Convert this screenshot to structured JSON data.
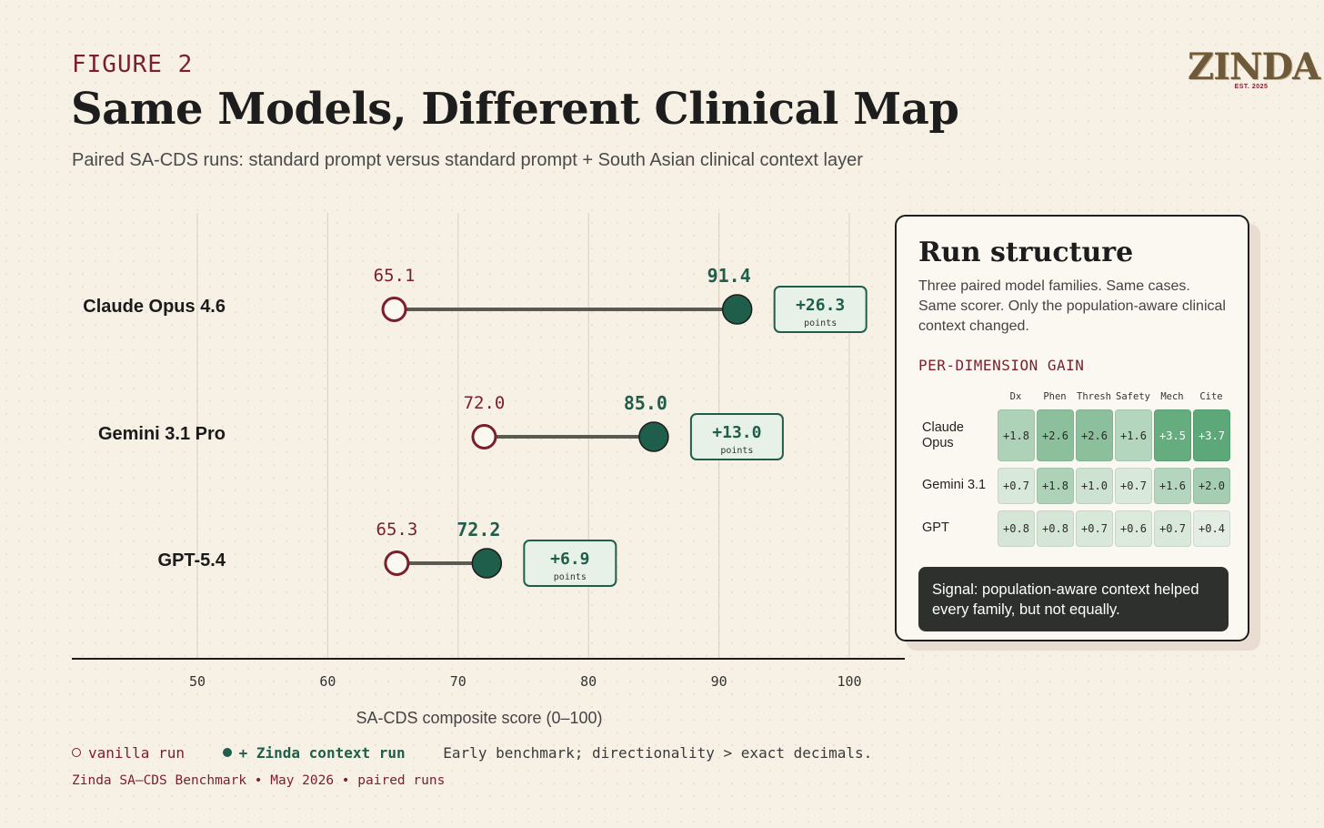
{
  "header": {
    "figure_label": "FIGURE 2",
    "title": "Same Models, Different Clinical Map",
    "subtitle": "Paired SA-CDS runs: standard prompt versus standard prompt + South Asian clinical context layer"
  },
  "logo": {
    "wordmark": "ZINDA",
    "est": "EST. 2025"
  },
  "colors": {
    "vanilla": "#7a1f2b",
    "zinda": "#1f5e4a",
    "connector": "#5a5a52",
    "grid": "#d9cfbf",
    "badge_bg": "#e8f1e8"
  },
  "chart_data": {
    "type": "dumbbell",
    "xlabel": "SA-CDS composite score (0–100)",
    "xlim": [
      40.5,
      104
    ],
    "xticks": [
      50,
      60,
      70,
      80,
      90,
      100
    ],
    "grid": true,
    "categories": [
      "Claude Opus 4.6",
      "Gemini 3.1 Pro",
      "GPT-5.4"
    ],
    "series": [
      {
        "name": "vanilla run",
        "values": [
          65.1,
          72.0,
          65.3
        ]
      },
      {
        "name": "+ Zinda context run",
        "values": [
          91.4,
          85.0,
          72.2
        ]
      }
    ],
    "gains": [
      "+26.3",
      "+13.0",
      "+6.9"
    ],
    "gain_unit": "points",
    "value_labels": {
      "vanilla": [
        "65.1",
        "72.0",
        "65.3"
      ],
      "zinda": [
        "91.4",
        "85.0",
        "72.2"
      ]
    }
  },
  "panel": {
    "title": "Run structure",
    "description": "Three paired model families. Same cases. Same scorer. Only the population-aware clinical context changed.",
    "dimension_label": "PER-DIMENSION GAIN",
    "heatmap": {
      "columns": [
        "Dx",
        "Phen",
        "Thresh",
        "Safety",
        "Mech",
        "Cite"
      ],
      "rows": [
        {
          "label": "Claude Opus",
          "values": [
            1.8,
            2.6,
            2.6,
            1.6,
            3.5,
            3.7
          ],
          "labels": [
            "+1.8",
            "+2.6",
            "+2.6",
            "+1.6",
            "+3.5",
            "+3.7"
          ]
        },
        {
          "label": "Gemini 3.1",
          "values": [
            0.7,
            1.8,
            1.0,
            0.7,
            1.6,
            2.0
          ],
          "labels": [
            "+0.7",
            "+1.8",
            "+1.0",
            "+0.7",
            "+1.6",
            "+2.0"
          ]
        },
        {
          "label": "GPT",
          "values": [
            0.8,
            0.8,
            0.7,
            0.6,
            0.7,
            0.4
          ],
          "labels": [
            "+0.8",
            "+0.8",
            "+0.7",
            "+0.6",
            "+0.7",
            "+0.4"
          ]
        }
      ]
    },
    "signal": "Signal: population-aware context helped every family, but not equally."
  },
  "legend": {
    "vanilla": "vanilla run",
    "zinda": "+ Zinda context run",
    "note": "Early benchmark; directionality > exact decimals."
  },
  "footer": "Zinda SA–CDS Benchmark • May 2026 • paired runs"
}
